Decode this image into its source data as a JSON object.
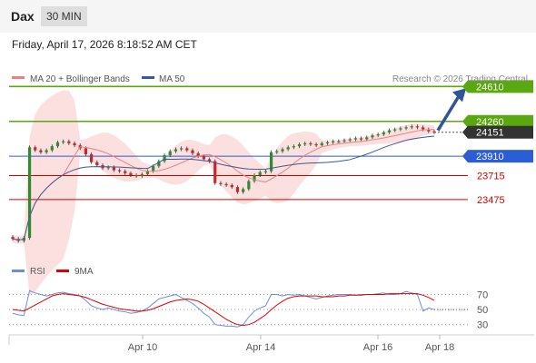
{
  "header": {
    "symbol": "Dax",
    "timeframe": "30 MIN"
  },
  "date_text": "Friday, April 17, 2026 8:18:52 AM CET",
  "credit": "Research © 2026 Trading Central",
  "colors": {
    "resistance": "#59a80f",
    "pivot": "#2a5dd6",
    "support": "#d40000",
    "current": "#333333",
    "ma20": "#f08080",
    "ma50": "#3b5998",
    "arrow": "#2f5597",
    "rsi": "#6b8fd6",
    "rsi_ma": "#e00000"
  },
  "chart_data": [
    {
      "type": "candlestick",
      "legend": [
        {
          "name": "MA 20 + Bollinger Bands",
          "color": "#f08080"
        },
        {
          "name": "MA 50",
          "color": "#3b5998"
        }
      ],
      "ylim": [
        23000,
        24750
      ],
      "x_ticks": [
        "Apr 10",
        "Apr 14",
        "Apr 16",
        "Apr 18"
      ],
      "levels": [
        {
          "value": 24610,
          "label": "24610",
          "kind": "resistance"
        },
        {
          "value": 24260,
          "label": "24260",
          "kind": "resistance"
        },
        {
          "value": 24151,
          "label": "24151",
          "kind": "current"
        },
        {
          "value": 23910,
          "label": "23910",
          "kind": "pivot"
        },
        {
          "value": 23715,
          "label": "23715",
          "kind": "support"
        },
        {
          "value": 23475,
          "label": "23475",
          "kind": "support"
        }
      ],
      "close": [
        23080,
        23060,
        23090,
        24000,
        23970,
        23950,
        23970,
        24010,
        24050,
        24060,
        24040,
        24020,
        23990,
        23930,
        23850,
        23820,
        23790,
        23800,
        23770,
        23760,
        23740,
        23720,
        23710,
        23730,
        23760,
        23810,
        23860,
        23920,
        23960,
        23980,
        23990,
        23970,
        23940,
        23910,
        23880,
        23860,
        23640,
        23630,
        23620,
        23600,
        23550,
        23580,
        23660,
        23720,
        23750,
        23760,
        23950,
        23960,
        23980,
        24000,
        24010,
        24030,
        24040,
        24030,
        24020,
        24040,
        24050,
        24060,
        24060,
        24070,
        24080,
        24090,
        24080,
        24100,
        24120,
        24130,
        24150,
        24170,
        24180,
        24190,
        24200,
        24210,
        24200,
        24180,
        24160,
        24151
      ]
    },
    {
      "type": "line",
      "series": [
        {
          "name": "RSI",
          "color": "#6b8fd6",
          "values": [
            45,
            43,
            42,
            75,
            72,
            70,
            68,
            70,
            72,
            73,
            71,
            70,
            68,
            62,
            55,
            52,
            50,
            52,
            50,
            48,
            47,
            45,
            46,
            48,
            52,
            58,
            64,
            66,
            68,
            70,
            66,
            62,
            58,
            52,
            45,
            40,
            30,
            29,
            28,
            28,
            27,
            30,
            40,
            48,
            52,
            55,
            70,
            70,
            68,
            70,
            69,
            70,
            68,
            66,
            64,
            66,
            68,
            69,
            70,
            70,
            70,
            69,
            70,
            70,
            70,
            71,
            72,
            70,
            70,
            71,
            74,
            72,
            70,
            48,
            52,
            50
          ]
        },
        {
          "name": "9MA",
          "color": "#e00000",
          "values": [
            50,
            49,
            48,
            52,
            56,
            60,
            64,
            68,
            70,
            71,
            70,
            69,
            68,
            66,
            63,
            60,
            57,
            55,
            53,
            51,
            50,
            49,
            48,
            48,
            49,
            51,
            54,
            57,
            60,
            62,
            63,
            64,
            63,
            61,
            57,
            52,
            47,
            42,
            37,
            33,
            30,
            29,
            30,
            33,
            38,
            43,
            50,
            56,
            61,
            65,
            67,
            68,
            68,
            68,
            68,
            67,
            67,
            67,
            68,
            68,
            69,
            69,
            69,
            70,
            70,
            70,
            70,
            71,
            71,
            71,
            71,
            71,
            71,
            69,
            66,
            62
          ]
        }
      ],
      "ylim": [
        20,
        85
      ],
      "y_ticks": [
        70,
        50,
        30
      ],
      "x_ticks": [
        "Apr 10",
        "Apr 14",
        "Apr 16",
        "Apr 18"
      ]
    }
  ]
}
